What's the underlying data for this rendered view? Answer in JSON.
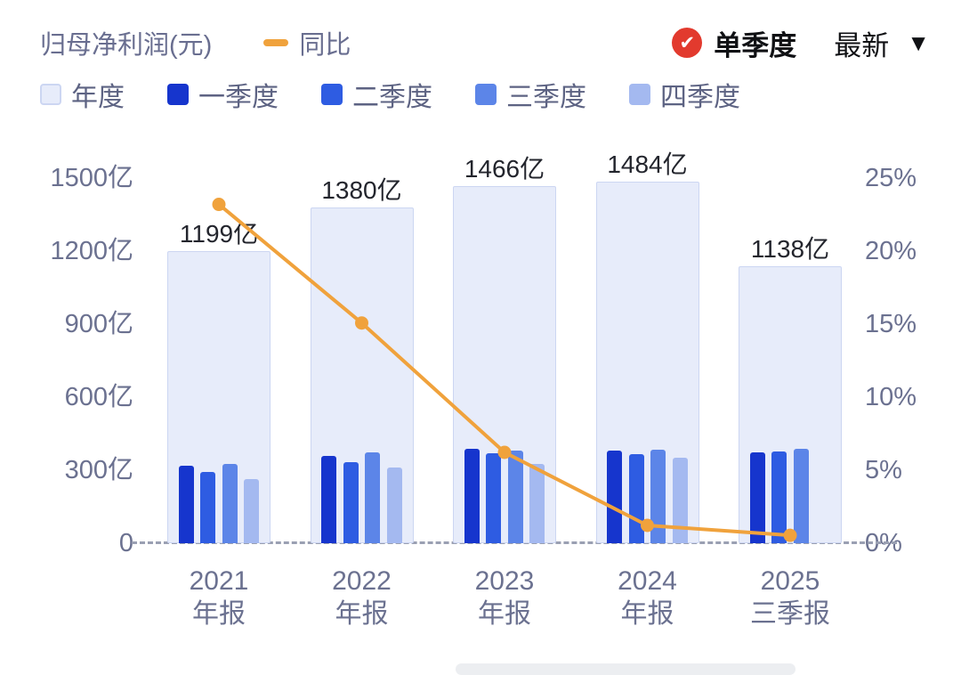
{
  "header": {
    "title": "归母净利润(元)",
    "line_legend_label": "同比",
    "quarter_toggle_label": "单季度",
    "latest_label": "最新"
  },
  "icons": {
    "check": "✔",
    "caret_down": "▼"
  },
  "colors": {
    "accent_red": "#e23a2e",
    "axis_text": "#6b7190",
    "value_text": "#23252d",
    "legend_text": "#5d6383",
    "baseline_dash": "#9aa0b2"
  },
  "chart_data": {
    "type": "grouped-bar+line",
    "title": "归母净利润(元)",
    "legend_position": "top",
    "grid": false,
    "categories": [
      {
        "line1": "2021",
        "line2": "年报"
      },
      {
        "line1": "2022",
        "line2": "年报"
      },
      {
        "line1": "2023",
        "line2": "年报"
      },
      {
        "line1": "2024",
        "line2": "年报"
      },
      {
        "line1": "2025",
        "line2": "三季报"
      }
    ],
    "annual_series": {
      "name": "年度",
      "color": "#e7ecfa",
      "border_color": "#ccd6f2",
      "values": [
        1199,
        1380,
        1466,
        1484,
        1138
      ],
      "value_labels": [
        "1199亿",
        "1380亿",
        "1466亿",
        "1484亿",
        "1138亿"
      ]
    },
    "quarterly_series": [
      {
        "name": "一季度",
        "color": "#1635cd",
        "values": [
          320,
          360,
          388,
          381,
          373
        ]
      },
      {
        "name": "二季度",
        "color": "#2e5ce2",
        "values": [
          291,
          334,
          369,
          367,
          376
        ]
      },
      {
        "name": "三季度",
        "color": "#5c85e8",
        "values": [
          325,
          375,
          381,
          384,
          389
        ]
      },
      {
        "name": "四季度",
        "color": "#a4b9f0",
        "values": [
          263,
          311,
          327,
          352,
          null
        ]
      }
    ],
    "line_series": {
      "name": "同比",
      "color": "#f0a23c",
      "values_pct": [
        23.2,
        15.08,
        6.22,
        1.22,
        0.54
      ]
    },
    "left_axis": {
      "unit": "亿",
      "min": 0,
      "max": 1500,
      "ticks": [
        "0",
        "300亿",
        "600亿",
        "900亿",
        "1200亿",
        "1500亿"
      ]
    },
    "right_axis": {
      "unit": "%",
      "min": 0,
      "max": 25,
      "ticks": [
        "0%",
        "5%",
        "10%",
        "15%",
        "20%",
        "25%"
      ]
    }
  }
}
